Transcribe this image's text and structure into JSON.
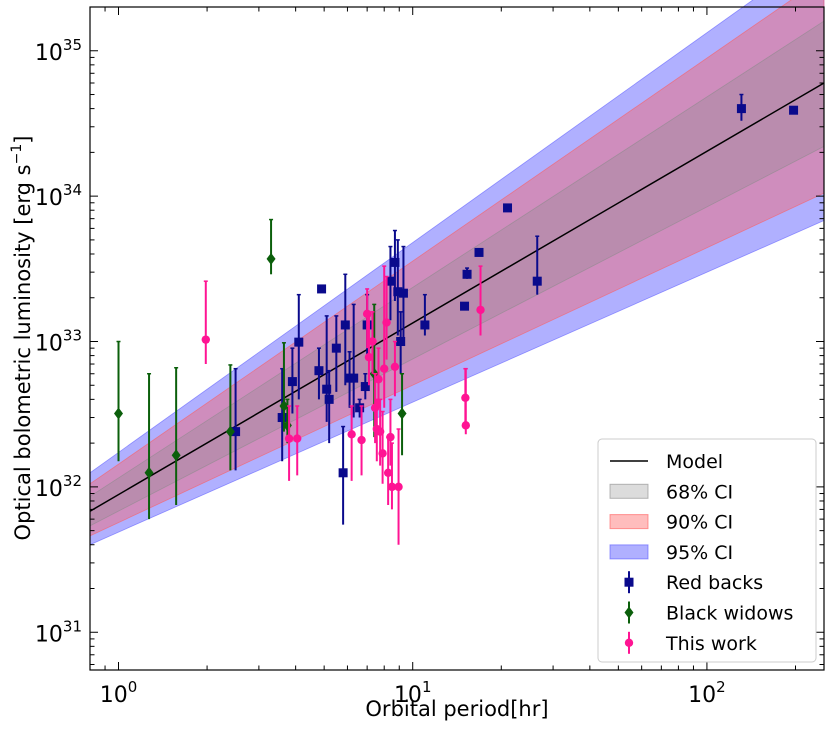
{
  "chart_data": {
    "type": "scatter",
    "xlabel": "Orbital period[hr]",
    "ylabel": "Optical bolometric luminosity [erg s",
    "ylabel_sup": "−1",
    "ylabel_close": "]",
    "x_scale": "log",
    "y_scale": "log",
    "xlim": [
      0.8,
      250
    ],
    "ylim": [
      5.5e+30,
      2e+35
    ],
    "x_ticks": [
      {
        "value": 1,
        "base": "10",
        "exp": "0"
      },
      {
        "value": 10,
        "base": "10",
        "exp": "1"
      },
      {
        "value": 100,
        "base": "10",
        "exp": "2"
      }
    ],
    "y_ticks": [
      {
        "value": 1e+31,
        "base": "10",
        "exp": "31"
      },
      {
        "value": 1e+32,
        "base": "10",
        "exp": "32"
      },
      {
        "value": 1e+33,
        "base": "10",
        "exp": "33"
      },
      {
        "value": 1e+34,
        "base": "10",
        "exp": "34"
      },
      {
        "value": 1e+35,
        "base": "10",
        "exp": "35"
      }
    ],
    "legend_position": "lower-right",
    "model": {
      "name": "Model",
      "color": "#000000",
      "points": [
        [
          0.8,
          6.8e+31
        ],
        [
          250,
          6e+34
        ]
      ]
    },
    "bands": [
      {
        "name": "95% CI",
        "color": "#5a5aff",
        "opacity": 0.48,
        "lower": [
          [
            0.8,
            4e+31
          ],
          [
            250,
            6.8e+33
          ]
        ],
        "upper": [
          [
            0.8,
            1.25e+32
          ],
          [
            250,
            5e+35
          ]
        ]
      },
      {
        "name": "90% CI",
        "color": "#ff5a5a",
        "opacity": 0.4,
        "lower": [
          [
            0.8,
            4.6e+31
          ],
          [
            250,
            1.05e+34
          ]
        ],
        "upper": [
          [
            0.8,
            1.05e+32
          ],
          [
            250,
            3.2e+35
          ]
        ]
      },
      {
        "name": "68% CI",
        "color": "#8a8a8a",
        "opacity": 0.3,
        "lower": [
          [
            0.8,
            5.4e+31
          ],
          [
            250,
            2.2e+34
          ]
        ],
        "upper": [
          [
            0.8,
            8.6e+31
          ],
          [
            250,
            1.6e+35
          ]
        ]
      }
    ],
    "series": [
      {
        "name": "Red backs",
        "color": "#0a0a8c",
        "marker": "square",
        "points": [
          [
            2.5,
            2.4e+32,
            1.3e+32,
            6.5e+32
          ],
          [
            3.6,
            3e+32,
            1.5e+32,
            6.5e+32
          ],
          [
            3.9,
            5.3e+32,
            3.2e+32,
            9e+32
          ],
          [
            4.1,
            9.9e+32,
            4e+32,
            2.1e+33
          ],
          [
            4.8,
            6.3e+32,
            4e+32,
            9e+32
          ],
          [
            4.9,
            2.3e+33,
            2.3e+33,
            2.3e+33
          ],
          [
            5.1,
            4.7e+32,
            2.8e+32,
            1.5e+33
          ],
          [
            5.2,
            4e+32,
            2e+32,
            6.3e+32
          ],
          [
            5.5,
            9e+32,
            4.5e+32,
            1.5e+33
          ],
          [
            5.8,
            1.25e+32,
            5.5e+31,
            2.6e+32
          ],
          [
            5.9,
            1.3e+33,
            5e+32,
            2.9e+33
          ],
          [
            6.1,
            5.6e+32,
            3.5e+32,
            8.5e+32
          ],
          [
            6.3,
            5.6e+32,
            3e+32,
            1.8e+33
          ],
          [
            6.6,
            3.5e+32,
            3e+32,
            4e+32
          ],
          [
            6.9,
            4.9e+32,
            4e+32,
            6e+32
          ],
          [
            7.0,
            1.3e+33,
            8e+32,
            2.1e+33
          ],
          [
            8.4,
            2.6e+33,
            1.4e+33,
            4.5e+33
          ],
          [
            8.7,
            3.5e+33,
            1.9e+33,
            5.8e+33
          ],
          [
            8.9,
            2.2e+33,
            1.1e+33,
            5e+33
          ],
          [
            9.1,
            1e+33,
            6e+32,
            1.6e+33
          ],
          [
            9.3,
            2.15e+33,
            1e+33,
            4.5e+33
          ],
          [
            11.0,
            1.3e+33,
            1.1e+33,
            2.1e+33
          ],
          [
            15.0,
            1.75e+33,
            1.75e+33,
            1.75e+33
          ],
          [
            15.3,
            2.9e+33,
            2.7e+33,
            3.2e+33
          ],
          [
            16.8,
            4.1e+33,
            4.1e+33,
            4.1e+33
          ],
          [
            21.0,
            8.3e+33,
            8.3e+33,
            8.3e+33
          ],
          [
            26.5,
            2.6e+33,
            2.1e+33,
            5.3e+33
          ],
          [
            131,
            4e+34,
            3.3e+34,
            5e+34
          ],
          [
            197,
            3.9e+34,
            3.9e+34,
            3.9e+34
          ]
        ]
      },
      {
        "name": "Black widows",
        "color": "#0b5f0b",
        "marker": "diamond",
        "points": [
          [
            1.0,
            3.2e+32,
            1.5e+32,
            1e+33
          ],
          [
            1.27,
            1.25e+32,
            6e+31,
            6e+32
          ],
          [
            1.57,
            1.65e+32,
            7.5e+31,
            6.6e+32
          ],
          [
            2.4,
            2.4e+32,
            1.3e+32,
            6.9e+32
          ],
          [
            3.3,
            3.7e+33,
            2.9e+33,
            6.9e+33
          ],
          [
            3.65,
            3.6e+32,
            2.4e+32,
            9.8e+32
          ],
          [
            3.75,
            2.65e+32,
            2e+32,
            4e+32
          ],
          [
            7.4,
            6e+32,
            2.2e+32,
            1.8e+33
          ],
          [
            9.2,
            3.2e+32,
            1.65e+32,
            6e+32
          ]
        ]
      },
      {
        "name": "This work",
        "color": "#ff1493",
        "marker": "circle",
        "points": [
          [
            1.98,
            1.03e+33,
            7e+32,
            2.6e+33
          ],
          [
            3.8,
            2.15e+32,
            1.1e+32,
            3.6e+32
          ],
          [
            4.05,
            2.15e+32,
            1.2e+32,
            3.6e+32
          ],
          [
            6.2,
            2.3e+32,
            1.1e+32,
            3.6e+32
          ],
          [
            6.7,
            2.1e+32,
            1.2e+32,
            3.6e+32
          ],
          [
            7.0,
            1.55e+33,
            9e+32,
            2.3e+33
          ],
          [
            7.1,
            7.8e+32,
            5e+32,
            1.5e+33
          ],
          [
            7.3,
            1e+33,
            6e+32,
            1.6e+33
          ],
          [
            7.45,
            3.5e+32,
            2e+32,
            6e+32
          ],
          [
            7.55,
            2.5e+32,
            1.5e+32,
            4e+32
          ],
          [
            7.65,
            5.5e+32,
            3.5e+32,
            9e+32
          ],
          [
            7.75,
            2.4e+32,
            1.4e+32,
            4e+32
          ],
          [
            7.9,
            1.7e+32,
            1.05e+32,
            3.3e+32
          ],
          [
            8.0,
            6.5e+32,
            3.5e+32,
            3.3e+33
          ],
          [
            8.15,
            1.35e+33,
            7.5e+32,
            2.8e+33
          ],
          [
            8.25,
            1.25e+32,
            7.5e+31,
            2.2e+32
          ],
          [
            8.4,
            2.2e+32,
            1.4e+32,
            4e+32
          ],
          [
            8.5,
            1e+32,
            7e+31,
            2e+32
          ],
          [
            8.7,
            6.7e+32,
            4.2e+32,
            1e+33
          ],
          [
            8.95,
            1e+32,
            4e+31,
            2.5e+32
          ],
          [
            15.1,
            4.1e+32,
            2.7e+32,
            6.5e+32
          ],
          [
            15.15,
            2.65e+32,
            2.3e+32,
            6.5e+32
          ],
          [
            17.0,
            1.65e+33,
            1.1e+33,
            3.3e+33
          ]
        ]
      }
    ],
    "legend_entries": [
      "Model",
      "68% CI",
      "90% CI",
      "95% CI",
      "Red backs",
      "Black widows",
      "This work"
    ]
  }
}
